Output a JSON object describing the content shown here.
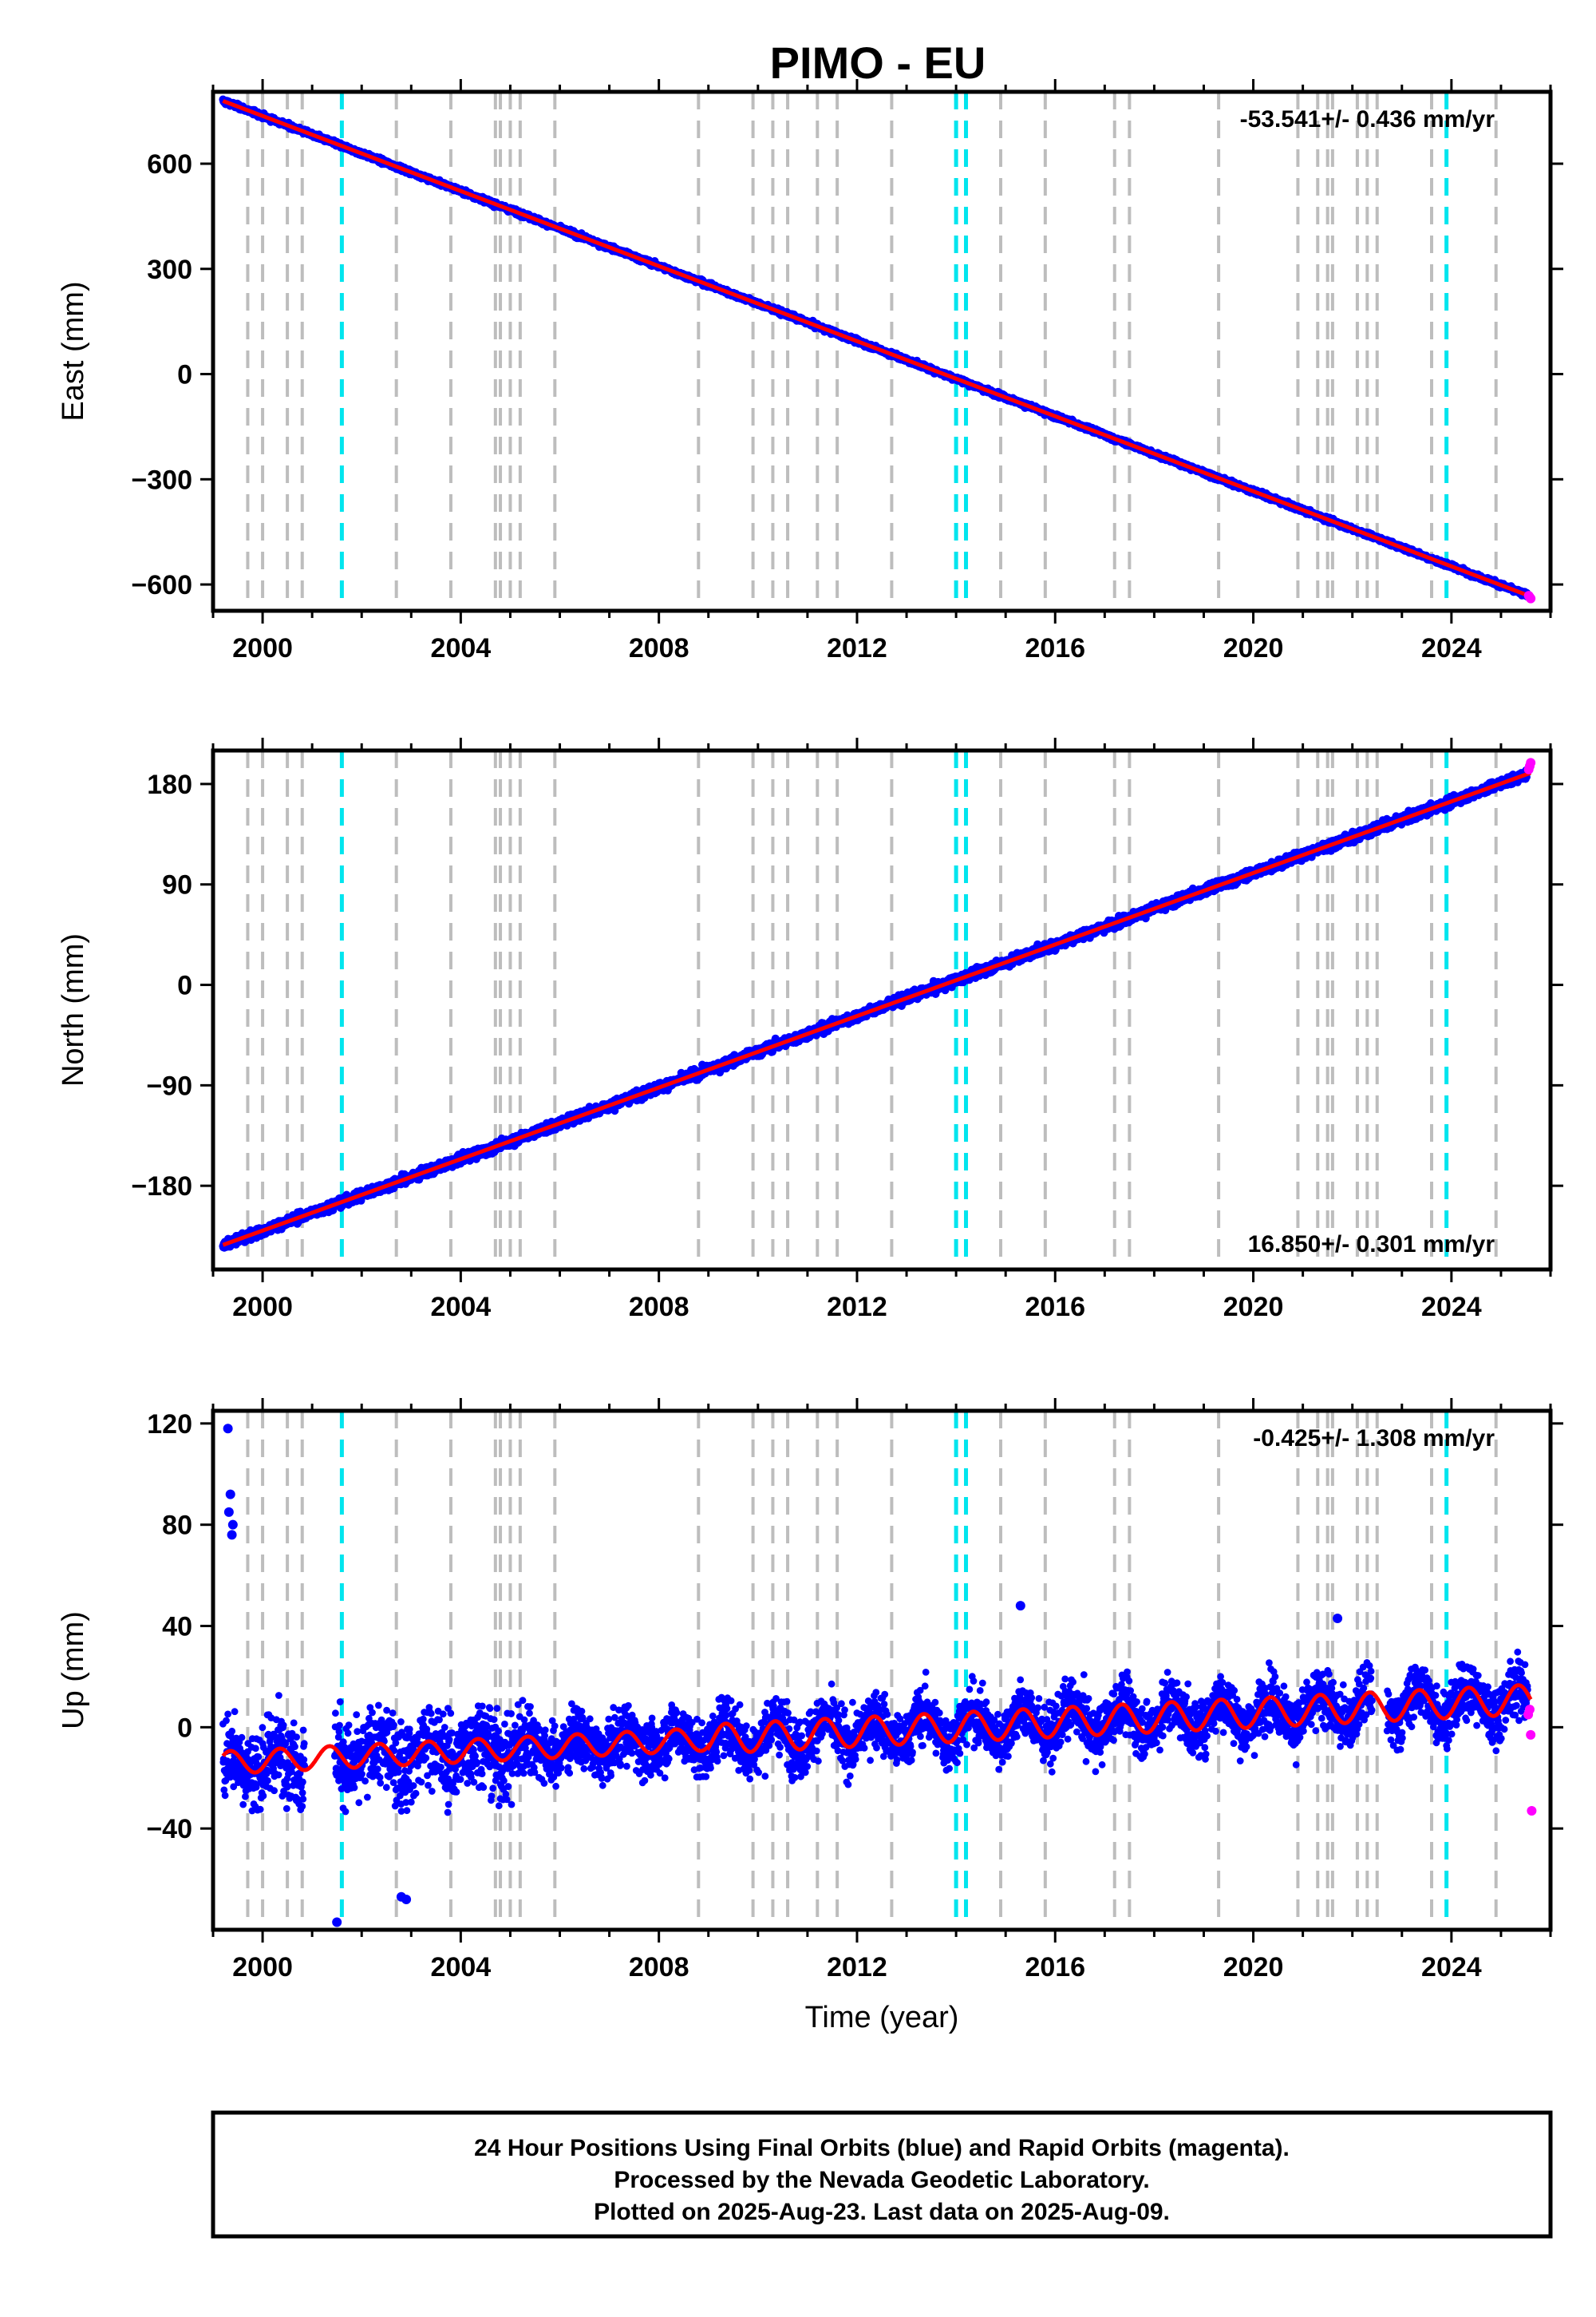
{
  "title": "PIMO - EU",
  "footer": {
    "lines": [
      "24 Hour Positions Using Final Orbits (blue) and Rapid Orbits (magenta).",
      "Processed by the Nevada Geodetic Laboratory.",
      "Plotted on 2025-Aug-23. Last data on 2025-Aug-09."
    ]
  },
  "colors": {
    "final_points": "#0000ff",
    "rapid_points": "#ff00ff",
    "model_line": "#ff0000",
    "equipment_change_lines": "#bdbdbd",
    "earthquake_lines": "#00e5ee"
  },
  "chart_data": [
    {
      "type": "scatter",
      "name": "east",
      "ylabel": "East (mm)",
      "xlabel": "",
      "rate_label": "-53.541+/- 0.436 mm/yr",
      "xlim": [
        1999.0,
        2026.0
      ],
      "ylim": [
        -675,
        805
      ],
      "xticks": [
        2000,
        2004,
        2008,
        2012,
        2016,
        2020,
        2024
      ],
      "yticks": [
        -600,
        -300,
        0,
        300,
        600
      ],
      "trend": {
        "start_year": 1999.2,
        "start_value": 779,
        "end_year": 2025.6,
        "end_value": -634
      },
      "rapid_points": {
        "x": [
          2025.56,
          2025.58,
          2025.6
        ],
        "y": [
          -632,
          -636,
          -640
        ]
      },
      "equipment_change_lines": [
        1999.7,
        2000.0,
        2000.5,
        2000.8,
        2002.7,
        2003.8,
        2004.7,
        2004.8,
        2005.0,
        2005.2,
        2005.9,
        2008.8,
        2009.9,
        2010.3,
        2010.6,
        2011.2,
        2011.6,
        2012.7,
        2014.9,
        2015.8,
        2017.2,
        2017.5,
        2019.3,
        2020.9,
        2021.3,
        2021.5,
        2021.6,
        2022.1,
        2022.3,
        2022.5,
        2023.6,
        2024.9
      ],
      "earthquake_lines": [
        2001.6,
        2014.0,
        2014.2,
        2023.9
      ]
    },
    {
      "type": "scatter",
      "name": "north",
      "ylabel": "North (mm)",
      "xlabel": "",
      "rate_label": "16.850+/- 0.301 mm/yr",
      "xlim": [
        1999.0,
        2026.0
      ],
      "ylim": [
        -255,
        210
      ],
      "xticks": [
        2000,
        2004,
        2008,
        2012,
        2016,
        2020,
        2024
      ],
      "yticks": [
        -180,
        -90,
        0,
        90,
        180
      ],
      "trend": {
        "start_year": 1999.2,
        "start_value": -233,
        "end_year": 2025.6,
        "end_value": 190
      },
      "rapid_points": {
        "x": [
          2025.56,
          2025.58,
          2025.6
        ],
        "y": [
          193,
          196,
          199
        ]
      },
      "equipment_change_lines": [
        1999.7,
        2000.0,
        2000.5,
        2000.8,
        2002.7,
        2003.8,
        2004.7,
        2004.8,
        2005.0,
        2005.2,
        2005.9,
        2008.8,
        2009.9,
        2010.3,
        2010.6,
        2011.2,
        2011.6,
        2012.7,
        2014.9,
        2015.8,
        2017.2,
        2017.5,
        2019.3,
        2020.9,
        2021.3,
        2021.5,
        2021.6,
        2022.1,
        2022.3,
        2022.5,
        2023.6,
        2024.9
      ],
      "earthquake_lines": [
        2001.6,
        2014.0,
        2014.2,
        2023.9
      ]
    },
    {
      "type": "scatter",
      "name": "up",
      "ylabel": "Up (mm)",
      "xlabel": "Time (year)",
      "rate_label": "-0.425+/- 1.308 mm/yr",
      "xlim": [
        1999.0,
        2026.0
      ],
      "ylim": [
        -80,
        125
      ],
      "xticks": [
        2000,
        2004,
        2008,
        2012,
        2016,
        2020,
        2024
      ],
      "yticks": [
        -40,
        0,
        40,
        80,
        120
      ],
      "trend": {
        "start_year": 1999.2,
        "start_value": -14,
        "end_year": 2025.6,
        "end_value": 11
      },
      "outliers": {
        "x": [
          1999.3,
          1999.35,
          1999.4,
          1999.32,
          1999.38,
          2001.5,
          2002.8,
          2002.9,
          2015.3,
          2021.7
        ],
        "y": [
          118,
          92,
          80,
          85,
          76,
          -77,
          -67,
          -68,
          48,
          43
        ]
      },
      "rapid_points": {
        "x": [
          2025.55,
          2025.58,
          2025.6,
          2025.62
        ],
        "y": [
          5,
          7,
          -3,
          -33
        ]
      },
      "equipment_change_lines": [
        1999.7,
        2000.0,
        2000.5,
        2000.8,
        2002.7,
        2003.8,
        2004.7,
        2004.8,
        2005.0,
        2005.2,
        2005.9,
        2008.8,
        2009.9,
        2010.3,
        2010.6,
        2011.2,
        2011.6,
        2012.7,
        2014.9,
        2015.8,
        2017.2,
        2017.5,
        2019.3,
        2020.9,
        2021.3,
        2021.5,
        2021.6,
        2022.1,
        2022.3,
        2022.5,
        2023.6,
        2024.9
      ],
      "earthquake_lines": [
        2001.6,
        2014.0,
        2014.2,
        2023.9
      ]
    }
  ]
}
